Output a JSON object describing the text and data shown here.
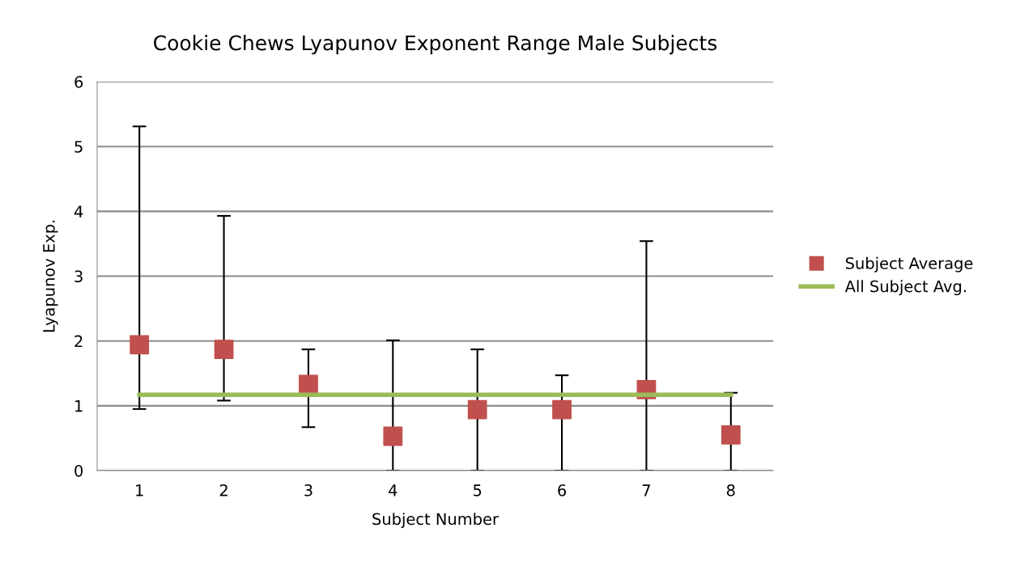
{
  "chart_data": {
    "type": "scatter",
    "title": "Cookie Chews Lyapunov Exponent Range Male Subjects",
    "xlabel": "Subject Number",
    "ylabel": "Lyapunov Exp.",
    "categories": [
      "1",
      "2",
      "3",
      "4",
      "5",
      "6",
      "7",
      "8"
    ],
    "series": [
      {
        "name": "Subject Average",
        "color": "#c0504d",
        "marker": "square",
        "values": [
          1.94,
          1.87,
          1.33,
          0.53,
          0.94,
          0.94,
          1.25,
          0.55
        ],
        "errors": [
          [
            0.95,
            5.31
          ],
          [
            1.08,
            3.93
          ],
          [
            0.67,
            1.87
          ],
          [
            0,
            2.01
          ],
          [
            0,
            1.87
          ],
          [
            0,
            1.47
          ],
          [
            0,
            3.54
          ],
          [
            0,
            1.2
          ]
        ]
      },
      {
        "name": "All Subject Avg.",
        "type": "line",
        "color": "#9bbb59",
        "marker": "none",
        "values": [
          1.17,
          1.17,
          1.17,
          1.17,
          1.17,
          1.17,
          1.17,
          1.17
        ]
      }
    ],
    "ylim": [
      0,
      6
    ],
    "yticks": [
      0,
      1,
      2,
      3,
      4,
      5,
      6
    ],
    "grid": "y",
    "legend": "right"
  }
}
